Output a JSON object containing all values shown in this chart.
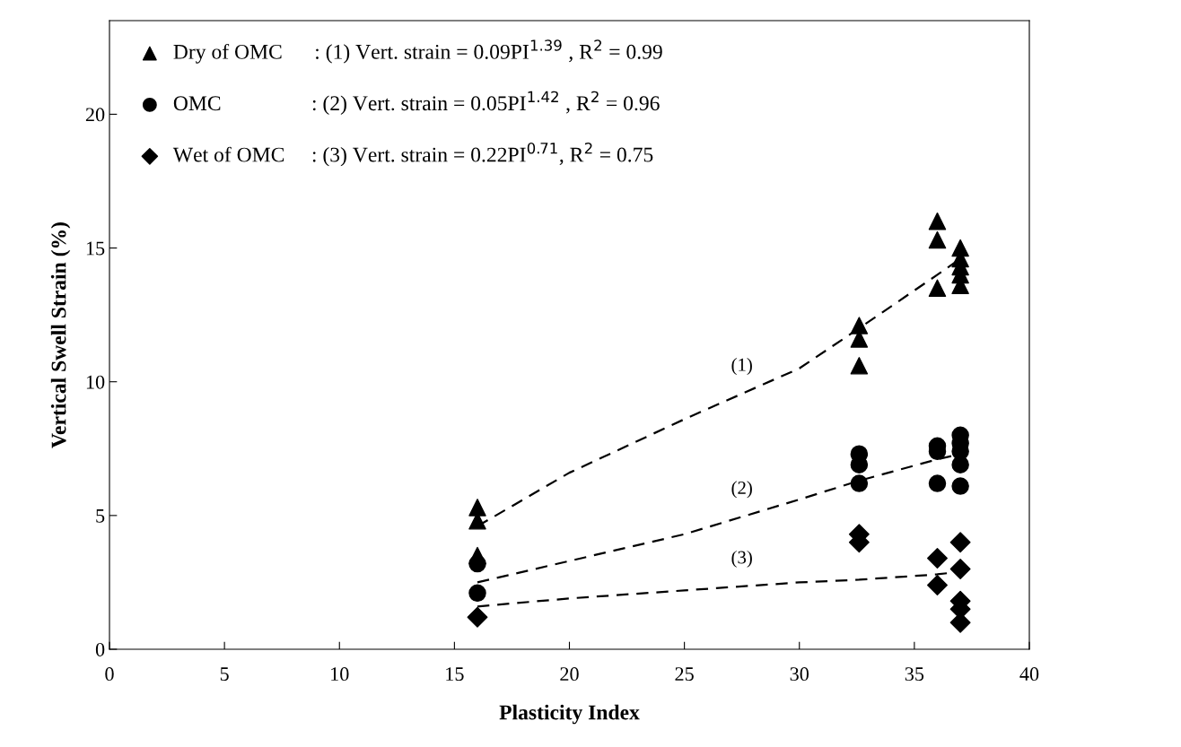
{
  "chart_data": {
    "type": "scatter",
    "xlabel": "Plasticity Index",
    "ylabel": "Vertical Swell Strain (%)",
    "xlim": [
      0,
      40
    ],
    "xticks": [
      0,
      5,
      10,
      15,
      20,
      25,
      30,
      35,
      40
    ],
    "ylim": [
      0,
      23.5
    ],
    "yticks": [
      0,
      5,
      10,
      15,
      20
    ],
    "grid": false,
    "legend": "top left",
    "series": [
      {
        "name": "Dry of OMC      : (1) Vert. strain = 0.09PI$^{1.39}$ , R$^{2}$ = 0.99",
        "marker": "triangle",
        "color": "#000000",
        "x": [
          16,
          16,
          16,
          32.6,
          32.6,
          32.6,
          36,
          36,
          36,
          37,
          37,
          37,
          37,
          37
        ],
        "values": [
          5.3,
          4.8,
          3.5,
          12.1,
          11.6,
          10.6,
          16.0,
          15.3,
          13.5,
          15.0,
          14.6,
          14.3,
          14.0,
          13.6
        ]
      },
      {
        "name": "OMC                 : (2) Vert. strain = 0.05PI$^{1.42}$ , R$^{2}$ = 0.96",
        "marker": "circle",
        "color": "#000000",
        "x": [
          16,
          16,
          32.6,
          32.6,
          32.6,
          36,
          36,
          36,
          37,
          37,
          37,
          37,
          37
        ],
        "values": [
          3.2,
          2.1,
          7.3,
          6.9,
          6.2,
          7.6,
          7.4,
          6.2,
          8.0,
          7.7,
          7.4,
          6.9,
          6.1
        ]
      },
      {
        "name": "Wet of OMC     : (3) Vert. strain = 0.22PI$^{0.71}$, R$^{2}$ = 0.75",
        "marker": "diamond",
        "color": "#000000",
        "x": [
          16,
          32.6,
          32.6,
          36,
          36,
          37,
          37,
          37,
          37,
          37
        ],
        "values": [
          1.2,
          4.3,
          4.0,
          3.4,
          2.4,
          4.0,
          3.0,
          1.8,
          1.5,
          1.0
        ]
      },
      {
        "type": "line",
        "line_style": "dashed",
        "color": "#000000",
        "x": [
          16,
          20,
          25,
          30,
          32.6,
          36,
          37
        ],
        "values": [
          4.6,
          6.6,
          8.6,
          10.5,
          12.0,
          14.0,
          14.6
        ]
      },
      {
        "type": "line",
        "line_style": "dashed",
        "color": "#000000",
        "x": [
          16,
          20,
          25,
          30,
          32.6,
          36,
          37
        ],
        "values": [
          2.5,
          3.3,
          4.3,
          5.6,
          6.3,
          7.1,
          7.3
        ]
      },
      {
        "type": "line",
        "line_style": "dashed",
        "color": "#000000",
        "x": [
          16,
          20,
          25,
          30,
          32.6,
          36,
          37
        ],
        "values": [
          1.6,
          1.9,
          2.2,
          2.5,
          2.6,
          2.8,
          2.9
        ]
      }
    ],
    "annotations": [
      "(1)",
      "(2)",
      "(3)"
    ]
  }
}
